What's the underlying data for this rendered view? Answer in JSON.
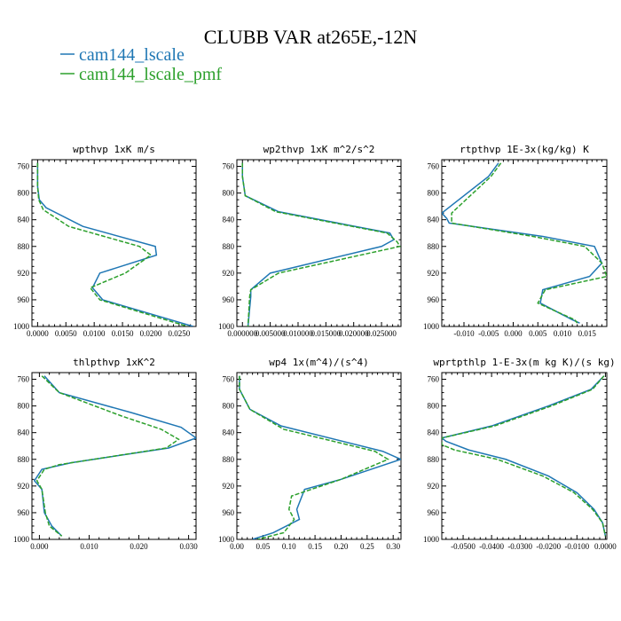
{
  "figure_title": "CLUBB VAR at265E,-12N",
  "colors": {
    "cam144_lscale": "#1f77b4",
    "cam144_lscale_pmf": "#2ca02c"
  },
  "legend": [
    {
      "label": "cam144_lscale",
      "color": "#1f77b4",
      "dash": false
    },
    {
      "label": "cam144_lscale_pmf",
      "color": "#2ca02c",
      "dash": true
    }
  ],
  "chart_data": [
    {
      "type": "line",
      "title": "wpthvp  1xK m/s",
      "xlim": [
        -0.001,
        0.028
      ],
      "ylim": [
        1000,
        750
      ],
      "y_inverted": true,
      "xticks": [
        0.0,
        0.005,
        0.01,
        0.015,
        0.02,
        0.025
      ],
      "xticklabels": [
        "0.0000",
        "0.0050",
        "0.0100",
        "0.0150",
        "0.0200",
        "0.0250"
      ],
      "yticks": [
        760,
        800,
        840,
        880,
        920,
        960,
        1000
      ],
      "series": [
        {
          "name": "cam144_lscale",
          "y": [
            755,
            790,
            810,
            822,
            850,
            880,
            893,
            920,
            942,
            960,
            1000
          ],
          "x": [
            0.0,
            0.0,
            0.0003,
            0.0015,
            0.008,
            0.0208,
            0.021,
            0.011,
            0.0097,
            0.0115,
            0.0275
          ]
        },
        {
          "name": "cam144_lscale_pmf",
          "y": [
            755,
            790,
            810,
            825,
            850,
            880,
            893,
            920,
            942,
            960,
            1000
          ],
          "x": [
            0.0,
            0.0,
            0.0002,
            0.001,
            0.0055,
            0.018,
            0.02,
            0.0155,
            0.0093,
            0.011,
            0.0265
          ]
        }
      ]
    },
    {
      "type": "line",
      "title": "wp2thvp  1xK m^2/s^2",
      "xlim": [
        -0.001,
        0.0285
      ],
      "ylim": [
        1000,
        750
      ],
      "y_inverted": true,
      "xticks": [
        0.0,
        0.005,
        0.01,
        0.015,
        0.02,
        0.025
      ],
      "xticklabels": [
        "0.000000",
        "0.005000",
        "0.010000",
        "0.015000",
        "0.020000",
        "0.025000"
      ],
      "yticks": [
        760,
        800,
        840,
        880,
        920,
        960,
        1000
      ],
      "series": [
        {
          "name": "cam144_lscale",
          "y": [
            755,
            775,
            804,
            828,
            860,
            870,
            880,
            920,
            945,
            955,
            1000
          ],
          "x": [
            0.0,
            0.0,
            0.0005,
            0.0065,
            0.0265,
            0.0272,
            0.025,
            0.005,
            0.0015,
            0.0015,
            0.001
          ]
        },
        {
          "name": "cam144_lscale_pmf",
          "y": [
            755,
            775,
            804,
            828,
            860,
            873,
            880,
            920,
            945,
            955,
            1000
          ],
          "x": [
            0.0,
            0.0,
            0.0005,
            0.006,
            0.026,
            0.0278,
            0.0283,
            0.0065,
            0.0015,
            0.0013,
            0.001
          ]
        }
      ]
    },
    {
      "type": "line",
      "title": "rtpthvp  1E-3x(kg/kg) K",
      "xlim": [
        -0.0145,
        0.019
      ],
      "ylim": [
        1000,
        750
      ],
      "y_inverted": true,
      "xticks": [
        -0.01,
        -0.005,
        0.0,
        0.005,
        0.01,
        0.015
      ],
      "xticklabels": [
        "-0.010",
        "-0.005",
        "0.000",
        "0.005",
        "0.010",
        "0.015"
      ],
      "yticks": [
        760,
        800,
        840,
        880,
        920,
        960,
        1000
      ],
      "series": [
        {
          "name": "cam144_lscale",
          "y": [
            755,
            775,
            830,
            838,
            845,
            865,
            880,
            905,
            925,
            945,
            965,
            990,
            995
          ],
          "x": [
            -0.003,
            -0.005,
            -0.0145,
            -0.0135,
            -0.013,
            0.006,
            0.0165,
            0.018,
            0.0155,
            0.006,
            0.0055,
            0.012,
            0.0135
          ]
        },
        {
          "name": "cam144_lscale_pmf",
          "y": [
            755,
            775,
            830,
            838,
            845,
            865,
            880,
            905,
            925,
            945,
            965,
            990,
            995
          ],
          "x": [
            -0.0025,
            -0.0045,
            -0.0125,
            -0.0125,
            -0.0125,
            0.004,
            0.0145,
            0.018,
            0.019,
            0.0065,
            0.005,
            0.0125,
            0.013
          ]
        }
      ]
    },
    {
      "type": "line",
      "title": "thlpthvp  1xK^2",
      "xlim": [
        -0.0015,
        0.0315
      ],
      "ylim": [
        1000,
        750
      ],
      "y_inverted": true,
      "xticks": [
        0.0,
        0.01,
        0.02,
        0.03
      ],
      "xticklabels": [
        "0.000",
        "0.010",
        "0.020",
        "0.030"
      ],
      "yticks": [
        760,
        800,
        840,
        880,
        920,
        960,
        1000
      ],
      "series": [
        {
          "name": "cam144_lscale",
          "y": [
            755,
            780,
            810,
            832,
            848,
            863,
            885,
            895,
            912,
            925,
            960,
            980,
            995
          ],
          "x": [
            0.001,
            0.004,
            0.0185,
            0.0285,
            0.0315,
            0.026,
            0.0065,
            0.0005,
            -0.001,
            0.0005,
            0.001,
            0.0025,
            0.0045
          ]
        },
        {
          "name": "cam144_lscale_pmf",
          "y": [
            755,
            780,
            815,
            835,
            850,
            863,
            888,
            895,
            912,
            925,
            960,
            980,
            995
          ],
          "x": [
            0.0005,
            0.004,
            0.0165,
            0.0245,
            0.028,
            0.0255,
            0.004,
            0.001,
            -0.0005,
            0.0005,
            0.0012,
            0.002,
            0.0045
          ]
        }
      ]
    },
    {
      "type": "line",
      "title": "wp4  1x(m^4)/(s^4)",
      "xlim": [
        0.0,
        0.315
      ],
      "ylim": [
        1000,
        750
      ],
      "y_inverted": true,
      "xticks": [
        0.0,
        0.05,
        0.1,
        0.15,
        0.2,
        0.25,
        0.3
      ],
      "xticklabels": [
        "0.00",
        "0.05",
        "0.10",
        "0.15",
        "0.20",
        "0.25",
        "0.30"
      ],
      "yticks": [
        760,
        800,
        840,
        880,
        920,
        960,
        1000
      ],
      "series": [
        {
          "name": "cam144_lscale",
          "y": [
            755,
            775,
            805,
            830,
            868,
            880,
            910,
            925,
            955,
            970,
            990,
            1000
          ],
          "x": [
            0.005,
            0.005,
            0.025,
            0.085,
            0.28,
            0.315,
            0.2,
            0.13,
            0.115,
            0.12,
            0.07,
            0.03
          ]
        },
        {
          "name": "cam144_lscale_pmf",
          "y": [
            755,
            775,
            805,
            835,
            868,
            880,
            910,
            935,
            955,
            970,
            990,
            1000
          ],
          "x": [
            0.005,
            0.005,
            0.025,
            0.09,
            0.265,
            0.29,
            0.2,
            0.105,
            0.1,
            0.11,
            0.09,
            0.04
          ]
        }
      ]
    },
    {
      "type": "line",
      "title": "wprtpthlp  1-E-3x(m kg K)/(s kg)",
      "xlim": [
        -0.0575,
        0.0005
      ],
      "ylim": [
        1000,
        750
      ],
      "y_inverted": true,
      "xticks": [
        -0.05,
        -0.04,
        -0.03,
        -0.02,
        -0.01,
        0.0
      ],
      "xticklabels": [
        "-0.0500",
        "-0.0400",
        "-0.0300",
        "-0.0200",
        "-0.0100",
        "0.0000"
      ],
      "yticks": [
        760,
        800,
        840,
        880,
        920,
        960,
        1000
      ],
      "series": [
        {
          "name": "cam144_lscale",
          "y": [
            755,
            775,
            800,
            830,
            848,
            853,
            866,
            880,
            905,
            930,
            955,
            975,
            995
          ],
          "x": [
            -0.0005,
            -0.005,
            -0.02,
            -0.04,
            -0.0575,
            -0.056,
            -0.048,
            -0.035,
            -0.02,
            -0.01,
            -0.004,
            -0.001,
            0.0
          ]
        },
        {
          "name": "cam144_lscale_pmf",
          "y": [
            755,
            775,
            800,
            830,
            848,
            858,
            866,
            880,
            905,
            930,
            955,
            975,
            995
          ],
          "x": [
            -0.0005,
            -0.0045,
            -0.019,
            -0.039,
            -0.0575,
            -0.0575,
            -0.053,
            -0.038,
            -0.022,
            -0.011,
            -0.0045,
            -0.001,
            0.0
          ]
        }
      ]
    }
  ]
}
